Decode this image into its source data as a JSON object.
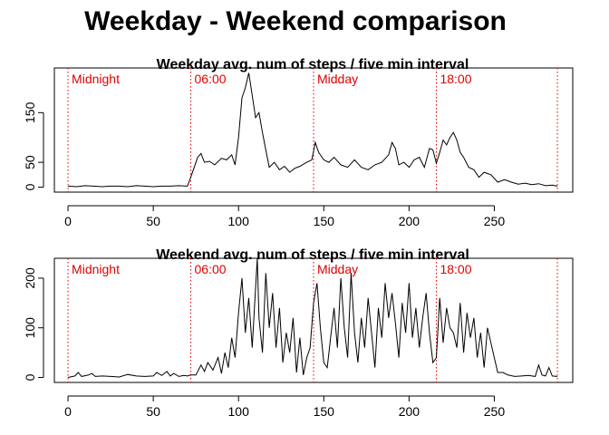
{
  "title": "Weekday - Weekend comparison",
  "colors": {
    "series": "#000000",
    "marker": "#e00000"
  },
  "chart_data": [
    {
      "type": "line",
      "title": "Weekday avg. num of steps / five min interval",
      "xlabel": "",
      "ylabel": "",
      "xlim": [
        -8,
        296
      ],
      "ylim": [
        -10,
        240
      ],
      "xticks": [
        0,
        50,
        100,
        150,
        200,
        250
      ],
      "yticks": [
        0,
        50,
        150
      ],
      "grid": false,
      "markers": [
        {
          "x": 0,
          "label": "Midnight"
        },
        {
          "x": 72,
          "label": "06:00"
        },
        {
          "x": 144,
          "label": "Midday"
        },
        {
          "x": 216,
          "label": "18:00"
        },
        {
          "x": 287,
          "label": ""
        }
      ],
      "series": [
        {
          "x": [
            0,
            5,
            10,
            15,
            20,
            25,
            30,
            35,
            40,
            45,
            50,
            55,
            60,
            65,
            70,
            72,
            74,
            76,
            78,
            80,
            83,
            86,
            90,
            93,
            96,
            98,
            100,
            102,
            104,
            106,
            108,
            110,
            112,
            114,
            116,
            118,
            121,
            124,
            127,
            130,
            133,
            136,
            140,
            143,
            145,
            147,
            150,
            153,
            156,
            160,
            164,
            168,
            172,
            176,
            180,
            184,
            188,
            190,
            192,
            194,
            197,
            200,
            203,
            206,
            209,
            212,
            214,
            216,
            218,
            220,
            222,
            224,
            226,
            228,
            230,
            232,
            235,
            238,
            241,
            244,
            248,
            252,
            256,
            260,
            264,
            268,
            272,
            276,
            280,
            284,
            287
          ],
          "y": [
            2,
            1,
            3,
            2,
            1,
            2,
            2,
            1,
            3,
            2,
            1,
            2,
            2,
            3,
            2,
            20,
            40,
            60,
            68,
            50,
            52,
            45,
            58,
            55,
            65,
            45,
            100,
            180,
            200,
            230,
            185,
            140,
            150,
            110,
            75,
            40,
            50,
            35,
            42,
            30,
            38,
            42,
            50,
            55,
            90,
            70,
            55,
            50,
            60,
            45,
            40,
            55,
            40,
            35,
            45,
            50,
            65,
            90,
            78,
            45,
            50,
            40,
            55,
            60,
            40,
            78,
            75,
            48,
            70,
            95,
            85,
            100,
            110,
            95,
            70,
            60,
            40,
            35,
            20,
            30,
            25,
            10,
            15,
            10,
            6,
            8,
            5,
            7,
            3,
            4,
            2
          ]
        }
      ]
    },
    {
      "type": "line",
      "title": "Weekend avg. num of steps / five min interval",
      "xlabel": "",
      "ylabel": "",
      "xlim": [
        -8,
        296
      ],
      "ylim": [
        -10,
        240
      ],
      "xticks": [
        0,
        50,
        100,
        150,
        200,
        250
      ],
      "yticks": [
        0,
        100,
        200
      ],
      "grid": false,
      "markers": [
        {
          "x": 0,
          "label": "Midnight"
        },
        {
          "x": 72,
          "label": "06:00"
        },
        {
          "x": 144,
          "label": "Midday"
        },
        {
          "x": 216,
          "label": "18:00"
        },
        {
          "x": 287,
          "label": ""
        }
      ],
      "series": [
        {
          "x": [
            0,
            4,
            6,
            8,
            12,
            14,
            16,
            20,
            25,
            30,
            35,
            40,
            45,
            50,
            52,
            55,
            58,
            60,
            62,
            65,
            68,
            70,
            72,
            75,
            78,
            80,
            82,
            85,
            88,
            90,
            92,
            94,
            96,
            98,
            100,
            102,
            104,
            106,
            108,
            110,
            111,
            112,
            114,
            116,
            118,
            120,
            122,
            124,
            126,
            128,
            130,
            132,
            134,
            136,
            138,
            140,
            142,
            144,
            146,
            148,
            150,
            152,
            154,
            156,
            158,
            160,
            162,
            164,
            166,
            167,
            168,
            170,
            172,
            174,
            176,
            178,
            180,
            182,
            184,
            186,
            188,
            190,
            192,
            194,
            196,
            198,
            200,
            202,
            204,
            206,
            208,
            210,
            212,
            214,
            216,
            218,
            220,
            222,
            224,
            226,
            228,
            230,
            232,
            234,
            236,
            238,
            240,
            242,
            244,
            246,
            248,
            250,
            252,
            255,
            258,
            262,
            266,
            270,
            274,
            276,
            278,
            280,
            282,
            284,
            287
          ],
          "y": [
            0,
            3,
            10,
            2,
            5,
            8,
            2,
            3,
            2,
            1,
            6,
            3,
            2,
            3,
            10,
            4,
            12,
            3,
            8,
            2,
            4,
            3,
            5,
            5,
            25,
            12,
            30,
            15,
            40,
            8,
            50,
            20,
            80,
            40,
            130,
            200,
            90,
            160,
            60,
            180,
            240,
            120,
            50,
            210,
            100,
            170,
            60,
            140,
            30,
            90,
            50,
            120,
            10,
            80,
            5,
            40,
            60,
            150,
            190,
            100,
            30,
            20,
            80,
            140,
            60,
            200,
            100,
            40,
            210,
            150,
            90,
            30,
            120,
            60,
            160,
            90,
            20,
            140,
            80,
            190,
            120,
            170,
            110,
            40,
            150,
            90,
            190,
            80,
            140,
            60,
            120,
            170,
            90,
            30,
            40,
            160,
            70,
            140,
            100,
            90,
            60,
            150,
            50,
            130,
            80,
            120,
            40,
            90,
            20,
            100,
            70,
            40,
            10,
            10,
            5,
            2,
            3,
            4,
            2,
            25,
            5,
            3,
            20,
            3,
            2
          ]
        }
      ]
    }
  ]
}
